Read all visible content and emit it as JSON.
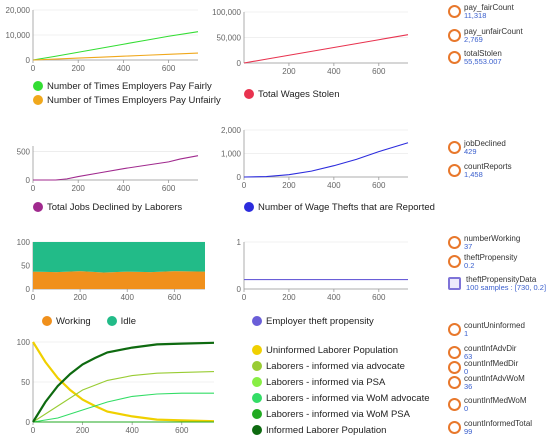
{
  "charts": [
    {
      "type": "line",
      "x_ticks": [
        0,
        200,
        400,
        600
      ],
      "y_ticks": [
        0,
        10000,
        20000
      ],
      "xlim": [
        0,
        730
      ],
      "ylim": [
        0,
        20000
      ],
      "series": [
        {
          "name": "Number of Times Employers Pay Fairly",
          "color": "#33dd33",
          "x": [
            0,
            100,
            200,
            300,
            400,
            500,
            600,
            730
          ],
          "y": [
            0,
            1500,
            3100,
            4700,
            6300,
            7900,
            9500,
            11318
          ]
        },
        {
          "name": "Number of Times Employers Pay Unfairly",
          "color": "#f0a81c",
          "x": [
            0,
            100,
            200,
            300,
            400,
            500,
            600,
            730
          ],
          "y": [
            0,
            380,
            760,
            1140,
            1520,
            1900,
            2280,
            2769
          ]
        }
      ]
    },
    {
      "type": "line",
      "x_ticks": [
        200,
        400,
        600
      ],
      "y_ticks": [
        0,
        50000,
        100000
      ],
      "xlim": [
        0,
        730
      ],
      "ylim": [
        0,
        100000
      ],
      "series": [
        {
          "name": "Total Wages Stolen",
          "color": "#e8334f",
          "x": [
            0,
            100,
            200,
            300,
            400,
            500,
            600,
            730
          ],
          "y": [
            0,
            7600,
            15200,
            22800,
            30400,
            38000,
            45600,
            55553
          ]
        }
      ]
    },
    {
      "type": "line",
      "x_ticks": [
        0,
        200,
        400,
        600
      ],
      "y_ticks": [
        0,
        500
      ],
      "xlim": [
        0,
        730
      ],
      "ylim": [
        0,
        600
      ],
      "series": [
        {
          "name": "Total Jobs Declined by Laborers",
          "color": "#a02a8e",
          "x": [
            0,
            100,
            150,
            200,
            300,
            400,
            500,
            600,
            650,
            730
          ],
          "y": [
            0,
            0,
            20,
            60,
            130,
            200,
            260,
            320,
            370,
            429
          ]
        }
      ]
    },
    {
      "type": "line",
      "x_ticks": [
        0,
        200,
        400,
        600
      ],
      "y_ticks": [
        0,
        1000,
        2000
      ],
      "xlim": [
        0,
        730
      ],
      "ylim": [
        0,
        2000
      ],
      "series": [
        {
          "name": "Number of Wage Thefts that are Reported",
          "color": "#2c2cdd",
          "x": [
            0,
            100,
            200,
            300,
            400,
            500,
            600,
            730
          ],
          "y": [
            0,
            20,
            100,
            250,
            480,
            750,
            1080,
            1458
          ]
        }
      ]
    },
    {
      "type": "area",
      "x_ticks": [
        0,
        200,
        400,
        600
      ],
      "y_ticks": [
        0,
        50,
        100
      ],
      "xlim": [
        0,
        730
      ],
      "ylim": [
        0,
        100
      ],
      "series": [
        {
          "name": "Working",
          "color": "#f0901c",
          "x": [
            0,
            100,
            200,
            300,
            400,
            500,
            600,
            730
          ],
          "y": [
            37,
            36,
            38,
            35,
            37,
            36,
            38,
            37
          ]
        },
        {
          "name": "Idle",
          "color": "#22bb88",
          "x": [
            0,
            100,
            200,
            300,
            400,
            500,
            600,
            730
          ],
          "y": [
            63,
            64,
            62,
            65,
            63,
            64,
            62,
            63
          ]
        }
      ]
    },
    {
      "type": "line",
      "x_ticks": [
        0,
        200,
        400,
        600
      ],
      "y_ticks": [
        0,
        1
      ],
      "xlim": [
        0,
        730
      ],
      "ylim": [
        0,
        1
      ],
      "series": [
        {
          "name": "Employer theft propensity",
          "color": "#6a5ed8",
          "x": [
            0,
            730
          ],
          "y": [
            0.2,
            0.2
          ]
        }
      ]
    },
    {
      "type": "line",
      "x_ticks": [
        0,
        200,
        400,
        600
      ],
      "y_ticks": [
        0,
        50,
        100
      ],
      "xlim": [
        0,
        730
      ],
      "ylim": [
        0,
        100
      ],
      "series": [
        {
          "name": "Uninformed Laborer Population",
          "color": "#f0d000",
          "x": [
            0,
            50,
            100,
            150,
            200,
            250,
            300,
            400,
            500,
            600,
            730
          ],
          "y": [
            100,
            75,
            55,
            40,
            28,
            20,
            13,
            7,
            3,
            2,
            1
          ]
        },
        {
          "name": "Laborers - informed via advocate",
          "color": "#99cc33",
          "x": [
            0,
            100,
            200,
            300,
            400,
            500,
            600,
            730
          ],
          "y": [
            0,
            20,
            40,
            52,
            58,
            61,
            62,
            63
          ]
        },
        {
          "name": "Laborers - informed via PSA",
          "color": "#88ee44",
          "x": [
            0,
            730
          ],
          "y": [
            0,
            0
          ]
        },
        {
          "name": "Laborers - informed via WoM advocate",
          "color": "#33dd66",
          "x": [
            0,
            100,
            200,
            300,
            400,
            500,
            600,
            730
          ],
          "y": [
            0,
            5,
            15,
            25,
            32,
            35,
            36,
            36
          ]
        },
        {
          "name": "Laborers - informed via WoM PSA",
          "color": "#22aa22",
          "x": [
            0,
            730
          ],
          "y": [
            0,
            0
          ]
        },
        {
          "name": "Informed Laborer Population",
          "color": "#0e6a10",
          "x": [
            0,
            50,
            100,
            150,
            200,
            250,
            300,
            400,
            500,
            600,
            730
          ],
          "y": [
            0,
            25,
            45,
            60,
            72,
            80,
            87,
            93,
            97,
            98,
            99
          ]
        }
      ]
    }
  ],
  "outputs": [
    {
      "name": "pay_fairCount",
      "value": "11,318"
    },
    {
      "name": "pay_unfairCount",
      "value": "2,769"
    },
    {
      "name": "totalStolen",
      "value": "55,553.007"
    },
    {
      "name": "jobDeclined",
      "value": "429"
    },
    {
      "name": "countReports",
      "value": "1,458"
    },
    {
      "name": "numberWorking",
      "value": "37"
    },
    {
      "name": "theftPropensity",
      "value": "0.2"
    },
    {
      "name": "theftPropensityData",
      "value": "100 samples : [730, 0.2]",
      "icon": "dataset-icon"
    },
    {
      "name": "countUninformed",
      "value": "1"
    },
    {
      "name": "countInfAdvDir",
      "value": "63"
    },
    {
      "name": "countInfMedDir",
      "value": "0"
    },
    {
      "name": "countInfAdvWoM",
      "value": "36"
    },
    {
      "name": "countInfMedWoM",
      "value": "0"
    },
    {
      "name": "countInformedTotal",
      "value": "99"
    }
  ]
}
